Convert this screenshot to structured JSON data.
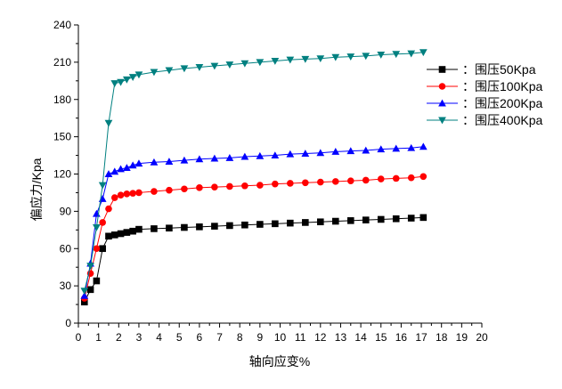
{
  "chart_data": {
    "type": "line",
    "xlabel": "轴向应变%",
    "ylabel": "偏应力/Kpa",
    "xlim": [
      0,
      20
    ],
    "ylim": [
      0,
      240
    ],
    "xticks": [
      0,
      1,
      2,
      3,
      4,
      5,
      6,
      7,
      8,
      9,
      10,
      11,
      12,
      13,
      14,
      15,
      16,
      17,
      18,
      19,
      20
    ],
    "yticks": [
      0,
      30,
      60,
      90,
      120,
      150,
      180,
      210,
      240
    ],
    "grid": false,
    "legend_position": "top-right",
    "series": [
      {
        "name": "：围压50Kpa",
        "color": "#000000",
        "marker": "square",
        "points": [
          [
            0.3,
            17
          ],
          [
            0.6,
            27
          ],
          [
            0.9,
            34
          ],
          [
            1.2,
            60
          ],
          [
            1.5,
            70
          ],
          [
            1.8,
            71
          ],
          [
            2.1,
            72
          ],
          [
            2.4,
            73
          ],
          [
            2.7,
            74
          ],
          [
            3.0,
            75.5
          ],
          [
            3.75,
            76
          ],
          [
            4.5,
            76.5
          ],
          [
            5.25,
            77
          ],
          [
            6.0,
            77.5
          ],
          [
            6.75,
            78
          ],
          [
            7.5,
            78.5
          ],
          [
            8.25,
            79
          ],
          [
            9.0,
            79.5
          ],
          [
            9.75,
            80
          ],
          [
            10.5,
            80.5
          ],
          [
            11.25,
            81
          ],
          [
            12.0,
            81.5
          ],
          [
            12.75,
            82
          ],
          [
            13.5,
            82.5
          ],
          [
            14.25,
            83
          ],
          [
            15.0,
            83.5
          ],
          [
            15.75,
            84
          ],
          [
            16.5,
            84.5
          ],
          [
            17.1,
            85
          ]
        ]
      },
      {
        "name": "：围压100Kpa",
        "color": "#ff0000",
        "marker": "circle",
        "points": [
          [
            0.3,
            20
          ],
          [
            0.6,
            40
          ],
          [
            0.9,
            60
          ],
          [
            1.2,
            81
          ],
          [
            1.5,
            92
          ],
          [
            1.8,
            101
          ],
          [
            2.1,
            103
          ],
          [
            2.4,
            104
          ],
          [
            2.7,
            104.5
          ],
          [
            3.0,
            105
          ],
          [
            3.75,
            106
          ],
          [
            4.5,
            107
          ],
          [
            5.25,
            108
          ],
          [
            6.0,
            109
          ],
          [
            6.75,
            109.5
          ],
          [
            7.5,
            110
          ],
          [
            8.25,
            110.5
          ],
          [
            9.0,
            111
          ],
          [
            9.75,
            112
          ],
          [
            10.5,
            112.5
          ],
          [
            11.25,
            113
          ],
          [
            12.0,
            113.5
          ],
          [
            12.75,
            114
          ],
          [
            13.5,
            114.5
          ],
          [
            14.25,
            115
          ],
          [
            15.0,
            116
          ],
          [
            15.75,
            116.5
          ],
          [
            16.5,
            117
          ],
          [
            17.1,
            118
          ]
        ]
      },
      {
        "name": "：围压200Kpa",
        "color": "#0000ff",
        "marker": "triangle-up",
        "points": [
          [
            0.3,
            22
          ],
          [
            0.6,
            48
          ],
          [
            0.9,
            88
          ],
          [
            1.2,
            100
          ],
          [
            1.5,
            120
          ],
          [
            1.8,
            122
          ],
          [
            2.1,
            124
          ],
          [
            2.4,
            125
          ],
          [
            2.7,
            127
          ],
          [
            3.0,
            128.5
          ],
          [
            3.75,
            129.5
          ],
          [
            4.5,
            130
          ],
          [
            5.25,
            131
          ],
          [
            6.0,
            132
          ],
          [
            6.75,
            132.5
          ],
          [
            7.5,
            133
          ],
          [
            8.25,
            134
          ],
          [
            9.0,
            134.5
          ],
          [
            9.75,
            135
          ],
          [
            10.5,
            136
          ],
          [
            11.25,
            136.5
          ],
          [
            12.0,
            137
          ],
          [
            12.75,
            138
          ],
          [
            13.5,
            138.5
          ],
          [
            14.25,
            139
          ],
          [
            15.0,
            140
          ],
          [
            15.75,
            140.5
          ],
          [
            16.5,
            141
          ],
          [
            17.1,
            142
          ]
        ]
      },
      {
        "name": "：围压400Kpa",
        "color": "#008080",
        "marker": "triangle-down",
        "points": [
          [
            0.3,
            26
          ],
          [
            0.6,
            46
          ],
          [
            0.9,
            77
          ],
          [
            1.2,
            111
          ],
          [
            1.5,
            161
          ],
          [
            1.8,
            193
          ],
          [
            2.1,
            194
          ],
          [
            2.4,
            196
          ],
          [
            2.7,
            198
          ],
          [
            3.0,
            200
          ],
          [
            3.75,
            202
          ],
          [
            4.5,
            203.5
          ],
          [
            5.25,
            205
          ],
          [
            6.0,
            206
          ],
          [
            6.75,
            207
          ],
          [
            7.5,
            208
          ],
          [
            8.25,
            209
          ],
          [
            9.0,
            210
          ],
          [
            9.75,
            211
          ],
          [
            10.5,
            212
          ],
          [
            11.25,
            212.5
          ],
          [
            12.0,
            213
          ],
          [
            12.75,
            214
          ],
          [
            13.5,
            214.5
          ],
          [
            14.25,
            215
          ],
          [
            15.0,
            216
          ],
          [
            15.75,
            216.5
          ],
          [
            16.5,
            217
          ],
          [
            17.1,
            218
          ]
        ]
      }
    ]
  }
}
